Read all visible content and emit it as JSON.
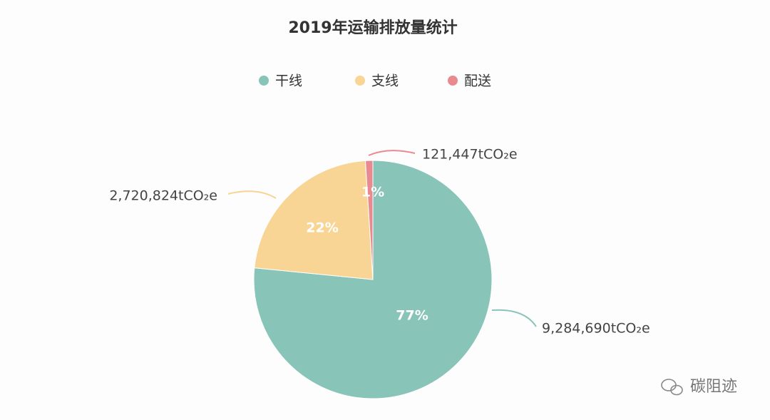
{
  "chart_data": {
    "type": "pie",
    "title": "2019年运输排放量统计",
    "categories": [
      "干线",
      "支线",
      "配送"
    ],
    "values": [
      9284690,
      2720824,
      121447
    ],
    "value_labels": [
      "9,284,690tCO₂e",
      "2,720,824tCO₂e",
      "121,447tCO₂e"
    ],
    "percents": [
      77,
      22,
      1
    ],
    "percent_labels": [
      "77%",
      "22%",
      "1%"
    ],
    "colors": [
      "#88c4b8",
      "#f8d595",
      "#e98a90"
    ],
    "legend": "top",
    "watermark": "碳阻迹"
  }
}
